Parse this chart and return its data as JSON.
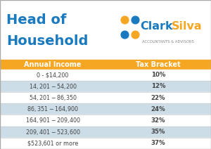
{
  "title_line1": "Head of",
  "title_line2": "Household",
  "title_color": "#1a7abf",
  "company_subtitle": "ACCOUNTANTS & ADVISORS",
  "header_bg": "#f5a623",
  "header_text_color": "#ffffff",
  "col1_header": "Annual Income",
  "col2_header": "Tax Bracket",
  "rows": [
    {
      "income": "0 - $14,200",
      "bracket": "10%",
      "shaded": false
    },
    {
      "income": "$14,201 - $54,200",
      "bracket": "12%",
      "shaded": true
    },
    {
      "income": "$54,201 - $86,350",
      "bracket": "22%",
      "shaded": false
    },
    {
      "income": "$86,351 - $164,900",
      "bracket": "24%",
      "shaded": true
    },
    {
      "income": "$164,901 - $209,400",
      "bracket": "32%",
      "shaded": false
    },
    {
      "income": "$209,401 - $523,600",
      "bracket": "35%",
      "shaded": true
    },
    {
      "income": "$523,601 or more",
      "bracket": "37%",
      "shaded": false
    }
  ],
  "row_shaded_color": "#ccdde8",
  "row_unshaded_color": "#ffffff",
  "row_text_color": "#444444",
  "bg_color": "#ffffff",
  "border_color": "#aaaaaa",
  "logo_blue": "#1a7abf",
  "logo_orange": "#f5a623",
  "logo_gray": "#888888"
}
